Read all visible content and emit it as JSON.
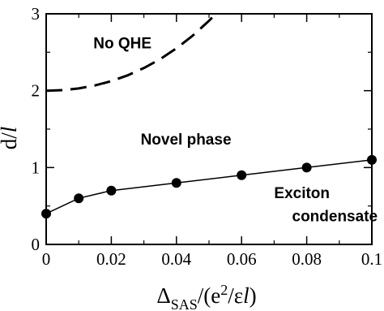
{
  "chart_data": {
    "type": "line",
    "xlabel": {
      "delta": "Δ",
      "delta_sub": "SAS",
      "rest_open": "/(e",
      "rest_sup": "2",
      "rest_mid": "/ε",
      "rest_l": "l",
      "rest_close": ")"
    },
    "ylabel": {
      "d": "d/",
      "l": "l"
    },
    "xlim": [
      0,
      0.1
    ],
    "ylim": [
      0,
      3
    ],
    "x_ticks": [
      0,
      0.02,
      0.04,
      0.06,
      0.08,
      0.1
    ],
    "x_tick_labels": [
      "0",
      "0.02",
      "0.04",
      "0.06",
      "0.08",
      "0.1"
    ],
    "y_ticks": [
      0,
      1,
      2,
      3
    ],
    "y_tick_labels": [
      "0",
      "1",
      "2",
      "3"
    ],
    "series": [
      {
        "style": "solid-markers",
        "color": "#000000",
        "x": [
          0,
          0.01,
          0.02,
          0.04,
          0.06,
          0.08,
          0.1
        ],
        "y": [
          0.4,
          0.6,
          0.7,
          0.8,
          0.9,
          1.0,
          1.1
        ]
      },
      {
        "style": "dashed",
        "color": "#000000",
        "x": [
          0,
          0.005,
          0.01,
          0.015,
          0.02,
          0.025,
          0.03,
          0.035,
          0.04,
          0.045,
          0.05,
          0.052
        ],
        "y": [
          2.0,
          2.007,
          2.029,
          2.068,
          2.124,
          2.199,
          2.294,
          2.411,
          2.551,
          2.716,
          2.909,
          2.995
        ]
      }
    ],
    "annotations": [
      {
        "text": "No QHE",
        "x": 0.0145,
        "y": 2.55
      },
      {
        "text": "Novel phase",
        "x": 0.029,
        "y": 1.3
      },
      {
        "text": "Exciton",
        "x": 0.07,
        "y": 0.6
      },
      {
        "text": "condensate",
        "x": 0.0755,
        "y": 0.3
      }
    ]
  }
}
